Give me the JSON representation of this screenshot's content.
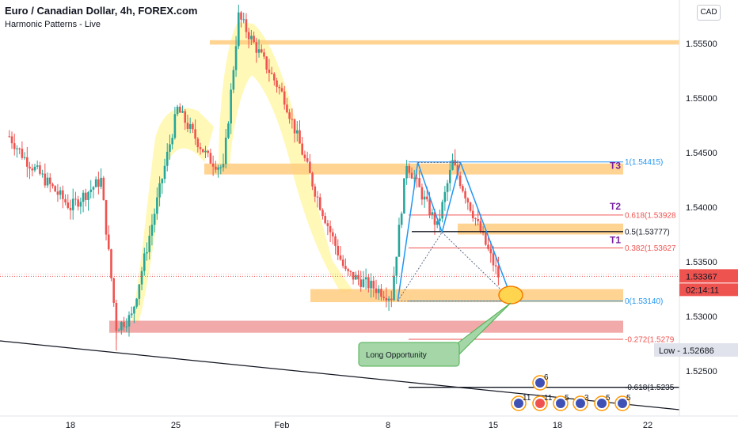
{
  "header": {
    "title": "Euro / Canadian Dollar, 4h, FOREX.com",
    "indicator": "Harmonic Patterns - Live"
  },
  "currency_button": "CAD",
  "price_axis": {
    "ticks": [
      "1.55500",
      "1.55000",
      "1.54500",
      "1.54000",
      "1.53500",
      "1.53000",
      "1.52500"
    ],
    "current_price": "1.53367",
    "countdown": "02:14:11",
    "low_label": "Low - 1.52686",
    "colors": {
      "current": "#ef5350",
      "low_bg": "#e0e3eb"
    }
  },
  "time_axis": {
    "ticks": [
      "18",
      "25",
      "Feb",
      "8",
      "15",
      "18",
      "22"
    ]
  },
  "fib_levels": [
    {
      "label": "1(1.54415)",
      "color": "#2196f3"
    },
    {
      "label": "0.618(1.53928",
      "color": "#ef5350"
    },
    {
      "label": "0.5(1.53777)",
      "color": "#131722"
    },
    {
      "label": "0.382(1.53627",
      "color": "#ef5350"
    },
    {
      "label": "0(1.53140)",
      "color": "#2196f3"
    },
    {
      "label": "-0.272(1.5279",
      "color": "#ef5350"
    },
    {
      "label": "-0.618(1.5235",
      "color": "#131722"
    }
  ],
  "targets": [
    {
      "label": "T3",
      "color": "#7b1fa2"
    },
    {
      "label": "T2",
      "color": "#7b1fa2"
    },
    {
      "label": "T1",
      "color": "#7b1fa2"
    }
  ],
  "callout": {
    "text": "Long Opportunity",
    "bg": "#a5d6a7"
  },
  "event_badges": [
    "6",
    "11",
    "11",
    "5",
    "3",
    "5",
    "5"
  ],
  "chart_data": {
    "type": "candlestick",
    "title": "Euro / Canadian Dollar, 4h, FOREX.com",
    "y_unit": "CAD",
    "ylim": [
      1.5215,
      1.5585
    ],
    "x_tick_labels": [
      "18",
      "25",
      "Feb",
      "8",
      "15",
      "18",
      "22"
    ],
    "grid": false,
    "price_path_approx": [
      {
        "t": "Jan 14",
        "price": 1.5465
      },
      {
        "t": "Jan 15",
        "price": 1.5445
      },
      {
        "t": "Jan 18",
        "price": 1.54
      },
      {
        "t": "Jan 20",
        "price": 1.5425
      },
      {
        "t": "Jan 21",
        "price": 1.529
      },
      {
        "t": "Jan 22",
        "price": 1.53
      },
      {
        "t": "Jan 25",
        "price": 1.549
      },
      {
        "t": "Jan 27",
        "price": 1.5445
      },
      {
        "t": "Jan 28",
        "price": 1.5435
      },
      {
        "t": "Jan 29",
        "price": 1.5575
      },
      {
        "t": "Feb 1",
        "price": 1.55
      },
      {
        "t": "Feb 3",
        "price": 1.5415
      },
      {
        "t": "Feb 5",
        "price": 1.534
      },
      {
        "t": "Feb 8",
        "price": 1.5318
      },
      {
        "t": "Feb 9",
        "price": 1.5441
      },
      {
        "t": "Feb 11",
        "price": 1.5382
      },
      {
        "t": "Feb 12",
        "price": 1.5441
      },
      {
        "t": "Feb 15",
        "price": 1.5337
      }
    ],
    "current_price": 1.53367,
    "harmonic_pattern": {
      "X": {
        "t": "Feb 8",
        "price": 1.5314
      },
      "A": {
        "t": "Feb 9",
        "price": 1.5441
      },
      "B": {
        "t": "Feb 11",
        "price": 1.5377
      },
      "C": {
        "t": "Feb 12",
        "price": 1.5441
      },
      "D": {
        "t": "Feb 15",
        "price": 1.5314
      }
    },
    "fib_retracement": [
      {
        "ratio": 1,
        "price": 1.54415
      },
      {
        "ratio": 0.618,
        "price": 1.53928
      },
      {
        "ratio": 0.5,
        "price": 1.53777
      },
      {
        "ratio": 0.382,
        "price": 1.53627
      },
      {
        "ratio": 0,
        "price": 1.5314
      },
      {
        "ratio": -0.272,
        "price": 1.5279
      },
      {
        "ratio": -0.618,
        "price": 1.5235
      }
    ],
    "zones": [
      {
        "from": 1.5549,
        "to": 1.5553,
        "color": "#ffcc80"
      },
      {
        "from": 1.543,
        "to": 1.544,
        "color": "#ffcc80"
      },
      {
        "from": 1.5375,
        "to": 1.5385,
        "color": "#ffcc80"
      },
      {
        "from": 1.5313,
        "to": 1.5325,
        "color": "#ffcc80"
      },
      {
        "from": 1.5285,
        "to": 1.5296,
        "color": "#ef9a9a"
      }
    ],
    "low": 1.52686
  }
}
